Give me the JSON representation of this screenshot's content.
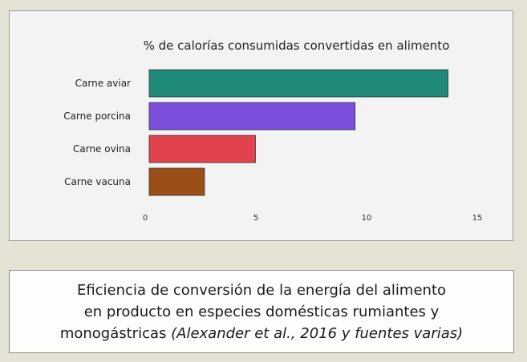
{
  "chart_data": {
    "type": "bar",
    "orientation": "horizontal",
    "title": "% de calorías consumidas convertidas en alimento",
    "categories": [
      "Carne aviar",
      "Carne porcina",
      "Carne ovina",
      "Carne vacuna"
    ],
    "values": [
      13.5,
      9.3,
      4.8,
      2.5
    ],
    "colors": [
      "#1f8a77",
      "#7b4fdc",
      "#e2424c",
      "#9b4e17"
    ],
    "xlim": [
      0,
      15
    ],
    "xticks": [
      0,
      5,
      10,
      15
    ],
    "grid": false,
    "legend": "none"
  },
  "caption": {
    "line1": "Eficiencia de conversión de la energía  del alimento",
    "line2": "en producto en especies domésticas  rumiantes y",
    "line3_plain": "monogástricas ",
    "line3_italic": "(Alexander et al., 2016 y fuentes varias)"
  }
}
